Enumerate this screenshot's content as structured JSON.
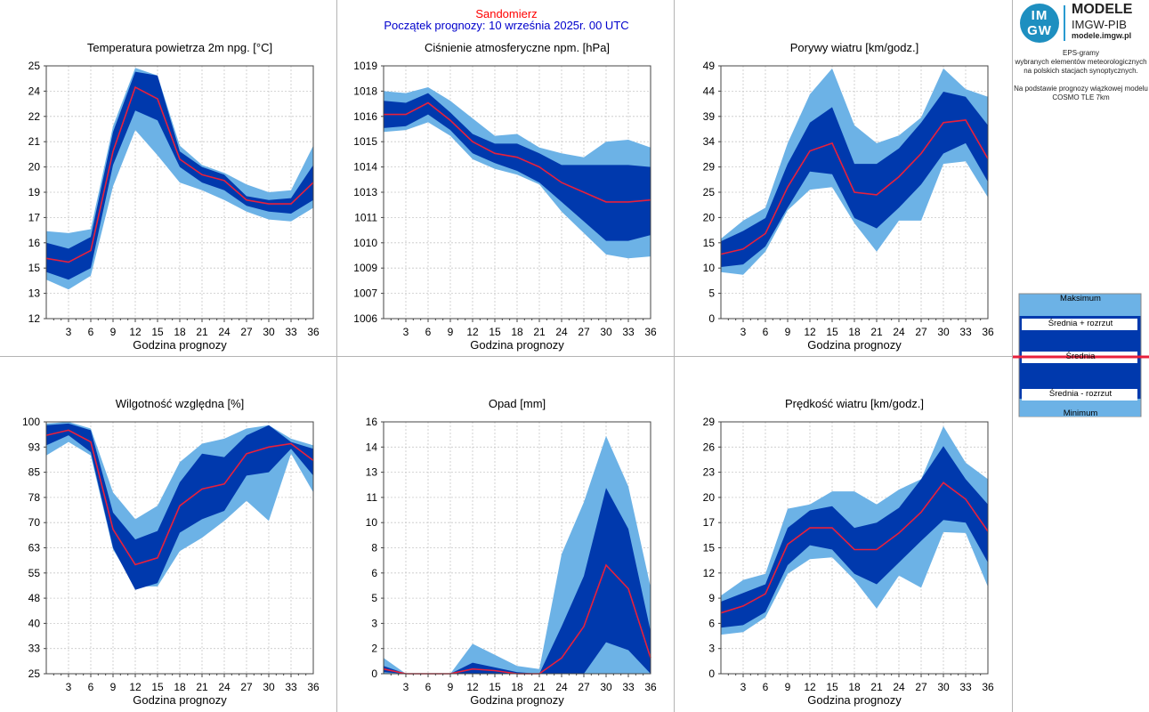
{
  "header": {
    "location": "Sandomierz",
    "forecast_start": "Początek prognozy: 10 września 2025r. 00 UTC"
  },
  "logo": {
    "mark_top": "IM",
    "mark_bottom": "GW",
    "title": "MODELE",
    "subtitle": "IMGW-PIB",
    "url": "modele.imgw.pl"
  },
  "description": {
    "line1": "EPS-gramy",
    "line2": "wybranych elementów meteorologicznych",
    "line3": "na polskich stacjach synoptycznych.",
    "line4": "Na podstawie prognozy wiązkowej modelu",
    "line5": "COSMO TLE 7km"
  },
  "legend": {
    "max": "Maksimum",
    "mean_plus": "Średnia + rozrzut",
    "mean": "Średnia",
    "mean_minus": "Średnia - rozrzut",
    "min": "Minimum"
  },
  "colors": {
    "band_outer": "#6cb2e6",
    "band_inner": "#0039ad",
    "mean_line": "#e8203c",
    "grid": "#c8c8c8",
    "header_location": "#ff0000",
    "header_date": "#0000cc"
  },
  "chart_data": [
    {
      "type": "area",
      "title": "Temperatura powietrza 2m npg. [°C]",
      "xlabel": "Godzina prognozy",
      "x": [
        0,
        3,
        6,
        9,
        12,
        15,
        18,
        21,
        24,
        27,
        30,
        33,
        36
      ],
      "xticks": [
        "3",
        "6",
        "9",
        "12",
        "15",
        "18",
        "21",
        "24",
        "27",
        "30",
        "33",
        "36"
      ],
      "ylim": [
        12,
        25
      ],
      "yticks": [
        "12",
        "13",
        "15",
        "16",
        "17",
        "19",
        "20",
        "21",
        "22",
        "24",
        "25"
      ],
      "series": [
        {
          "role": "max",
          "values": [
            16.5,
            16.4,
            16.6,
            21.9,
            24.9,
            24.5,
            20.9,
            19.9,
            19.5,
            18.9,
            18.5,
            18.6,
            20.9
          ]
        },
        {
          "role": "mean_plus",
          "values": [
            15.9,
            15.6,
            16.2,
            21.6,
            24.7,
            24.5,
            20.6,
            19.8,
            19.4,
            18.3,
            18.1,
            18.2,
            19.9
          ]
        },
        {
          "role": "mean",
          "values": [
            15.1,
            14.9,
            15.5,
            20.6,
            23.9,
            23.3,
            20.2,
            19.4,
            19.1,
            18.1,
            17.9,
            17.9,
            19.0
          ]
        },
        {
          "role": "mean_minus",
          "values": [
            14.4,
            14.0,
            14.6,
            19.9,
            22.7,
            22.2,
            19.8,
            19.0,
            18.6,
            17.8,
            17.5,
            17.4,
            18.1
          ]
        },
        {
          "role": "min",
          "values": [
            14.0,
            13.5,
            14.2,
            18.8,
            21.7,
            20.4,
            19.0,
            18.6,
            18.1,
            17.5,
            17.1,
            17.0,
            17.7
          ]
        }
      ]
    },
    {
      "type": "area",
      "title": "Ciśnienie atmosferyczne npm. [hPa]",
      "xlabel": "Godzina prognozy",
      "x": [
        0,
        3,
        6,
        9,
        12,
        15,
        18,
        21,
        24,
        27,
        30,
        33,
        36
      ],
      "xticks": [
        "3",
        "6",
        "9",
        "12",
        "15",
        "18",
        "21",
        "24",
        "27",
        "30",
        "33",
        "36"
      ],
      "ylim": [
        1006,
        1019
      ],
      "yticks": [
        "1006",
        "1007",
        "1009",
        "1010",
        "1011",
        "1013",
        "1014",
        "1015",
        "1016",
        "1018",
        "1019"
      ],
      "series": [
        {
          "role": "max",
          "values": [
            1017.7,
            1017.6,
            1017.9,
            1017.2,
            1016.3,
            1015.4,
            1015.5,
            1014.8,
            1014.5,
            1014.3,
            1015.1,
            1015.2,
            1014.8
          ]
        },
        {
          "role": "mean_plus",
          "values": [
            1017.2,
            1017.1,
            1017.6,
            1016.6,
            1015.5,
            1015.0,
            1015.0,
            1014.5,
            1013.9,
            1013.9,
            1013.9,
            1013.9,
            1013.8
          ]
        },
        {
          "role": "mean",
          "values": [
            1016.5,
            1016.5,
            1017.1,
            1016.2,
            1015.1,
            1014.5,
            1014.3,
            1013.8,
            1013.0,
            1012.5,
            1012.0,
            1012.0,
            1012.1
          ]
        },
        {
          "role": "mean_minus",
          "values": [
            1015.8,
            1015.9,
            1016.5,
            1015.7,
            1014.5,
            1014.0,
            1013.6,
            1013.0,
            1012.0,
            1011.0,
            1010.0,
            1010.0,
            1010.3
          ]
        },
        {
          "role": "min",
          "values": [
            1015.6,
            1015.7,
            1016.1,
            1015.4,
            1014.2,
            1013.7,
            1013.4,
            1012.9,
            1011.5,
            1010.4,
            1009.3,
            1009.1,
            1009.2
          ]
        }
      ]
    },
    {
      "type": "area",
      "title": "Porywy wiatru [km/godz.]",
      "xlabel": "Godzina prognozy",
      "x": [
        0,
        3,
        6,
        9,
        12,
        15,
        18,
        21,
        24,
        27,
        30,
        33,
        36
      ],
      "xticks": [
        "3",
        "6",
        "9",
        "12",
        "15",
        "18",
        "21",
        "24",
        "27",
        "30",
        "33",
        "36"
      ],
      "ylim": [
        0,
        49
      ],
      "yticks": [
        "0",
        "5",
        "10",
        "15",
        "20",
        "25",
        "29",
        "34",
        "39",
        "44",
        "49"
      ],
      "series": [
        {
          "role": "max",
          "values": [
            15.5,
            19.0,
            21.5,
            34.0,
            43.5,
            48.5,
            37.5,
            34.0,
            35.5,
            39.0,
            48.5,
            44.5,
            43.0
          ]
        },
        {
          "role": "mean_plus",
          "values": [
            15.0,
            17.0,
            19.5,
            30.0,
            38.0,
            41.0,
            30.0,
            30.0,
            33.0,
            38.0,
            44.0,
            43.0,
            37.5
          ]
        },
        {
          "role": "mean",
          "values": [
            12.5,
            13.5,
            16.5,
            25.5,
            32.5,
            34.0,
            24.5,
            24.0,
            27.5,
            32.0,
            38.0,
            38.5,
            31.0
          ]
        },
        {
          "role": "mean_minus",
          "values": [
            10.0,
            10.5,
            14.0,
            21.5,
            28.5,
            28.0,
            19.5,
            17.5,
            21.5,
            26.0,
            32.0,
            34.0,
            26.5
          ]
        },
        {
          "role": "min",
          "values": [
            9.0,
            8.5,
            13.0,
            21.0,
            25.0,
            25.5,
            18.5,
            13.0,
            19.0,
            19.0,
            30.0,
            30.5,
            23.5
          ]
        }
      ]
    },
    {
      "type": "area",
      "title": "Wilgotność względna [%]",
      "xlabel": "Godzina prognozy",
      "x": [
        0,
        3,
        6,
        9,
        12,
        15,
        18,
        21,
        24,
        27,
        30,
        33,
        36
      ],
      "xticks": [
        "3",
        "6",
        "9",
        "12",
        "15",
        "18",
        "21",
        "24",
        "27",
        "30",
        "33",
        "36"
      ],
      "ylim": [
        25,
        100
      ],
      "yticks": [
        "25",
        "33",
        "40",
        "48",
        "55",
        "63",
        "70",
        "78",
        "85",
        "93",
        "100"
      ],
      "series": [
        {
          "role": "max",
          "values": [
            99.5,
            100.0,
            98.0,
            79.0,
            71.0,
            75.0,
            88.0,
            93.5,
            95.0,
            98.0,
            99.0,
            95.0,
            93.0
          ]
        },
        {
          "role": "mean_plus",
          "values": [
            99.0,
            99.5,
            97.5,
            73.0,
            65.0,
            67.5,
            82.0,
            90.5,
            89.5,
            96.0,
            99.0,
            94.0,
            92.0
          ]
        },
        {
          "role": "mean",
          "values": [
            96.0,
            97.5,
            94.0,
            68.0,
            57.5,
            59.5,
            75.0,
            80.0,
            81.5,
            90.5,
            92.5,
            93.5,
            88.5
          ]
        },
        {
          "role": "mean_minus",
          "values": [
            93.0,
            96.0,
            91.0,
            62.5,
            50.0,
            52.0,
            67.0,
            71.0,
            73.5,
            84.0,
            85.0,
            92.0,
            84.0
          ]
        },
        {
          "role": "min",
          "values": [
            90.0,
            94.0,
            90.0,
            62.0,
            51.0,
            51.0,
            61.5,
            65.5,
            70.5,
            76.5,
            70.5,
            90.5,
            79.0
          ]
        }
      ]
    },
    {
      "type": "area",
      "title": "Opad [mm]",
      "xlabel": "Godzina prognozy",
      "x": [
        0,
        3,
        6,
        9,
        12,
        15,
        18,
        21,
        24,
        27,
        30,
        33,
        36
      ],
      "xticks": [
        "3",
        "6",
        "9",
        "12",
        "15",
        "18",
        "21",
        "24",
        "27",
        "30",
        "33",
        "36"
      ],
      "ylim": [
        0,
        16
      ],
      "yticks": [
        "0",
        "2",
        "3",
        "5",
        "6",
        "8",
        "10",
        "11",
        "13",
        "14",
        "16"
      ],
      "series": [
        {
          "role": "max",
          "values": [
            1.0,
            0.0,
            0.0,
            0.0,
            1.9,
            1.2,
            0.5,
            0.3,
            7.6,
            10.9,
            15.1,
            11.9,
            5.5
          ]
        },
        {
          "role": "mean_plus",
          "values": [
            0.5,
            0.0,
            0.0,
            0.0,
            0.7,
            0.4,
            0.1,
            0.0,
            3.0,
            6.2,
            11.8,
            9.2,
            2.7
          ]
        },
        {
          "role": "mean",
          "values": [
            0.3,
            0.0,
            0.0,
            0.0,
            0.3,
            0.2,
            0.0,
            0.0,
            1.0,
            3.0,
            6.9,
            5.4,
            1.0
          ]
        },
        {
          "role": "mean_minus",
          "values": [
            0.1,
            0.0,
            0.0,
            0.0,
            0.0,
            0.0,
            0.0,
            0.0,
            0.0,
            0.0,
            2.0,
            1.5,
            0.0
          ]
        },
        {
          "role": "min",
          "values": [
            0.0,
            0.0,
            0.0,
            0.0,
            0.0,
            0.0,
            0.0,
            0.0,
            0.0,
            0.0,
            0.0,
            0.0,
            0.0
          ]
        }
      ]
    },
    {
      "type": "area",
      "title": "Prędkość wiatru [km/godz.]",
      "xlabel": "Godzina prognozy",
      "x": [
        0,
        3,
        6,
        9,
        12,
        15,
        18,
        21,
        24,
        27,
        30,
        33,
        36
      ],
      "xticks": [
        "3",
        "6",
        "9",
        "12",
        "15",
        "18",
        "21",
        "24",
        "27",
        "30",
        "33",
        "36"
      ],
      "ylim": [
        0,
        29
      ],
      "yticks": [
        "0",
        "3",
        "6",
        "9",
        "12",
        "15",
        "17",
        "20",
        "23",
        "26",
        "29"
      ],
      "series": [
        {
          "role": "max",
          "values": [
            9.0,
            10.8,
            11.5,
            19.0,
            19.5,
            21.0,
            21.0,
            19.5,
            21.2,
            22.4,
            28.5,
            24.3,
            22.4
          ]
        },
        {
          "role": "mean_plus",
          "values": [
            8.3,
            9.3,
            10.3,
            16.8,
            18.8,
            19.3,
            16.8,
            17.4,
            19.1,
            22.4,
            26.2,
            22.4,
            19.5
          ]
        },
        {
          "role": "mean",
          "values": [
            7.0,
            7.8,
            9.2,
            14.9,
            16.8,
            16.8,
            14.3,
            14.3,
            16.2,
            18.6,
            22.0,
            20.1,
            16.4
          ]
        },
        {
          "role": "mean_minus",
          "values": [
            5.3,
            5.6,
            7.1,
            12.5,
            14.8,
            14.3,
            11.5,
            10.3,
            12.8,
            15.3,
            17.7,
            17.4,
            12.8
          ]
        },
        {
          "role": "min",
          "values": [
            4.5,
            4.8,
            6.5,
            11.5,
            13.2,
            13.4,
            10.8,
            7.5,
            11.3,
            9.9,
            16.3,
            16.2,
            10.0
          ]
        }
      ]
    }
  ]
}
